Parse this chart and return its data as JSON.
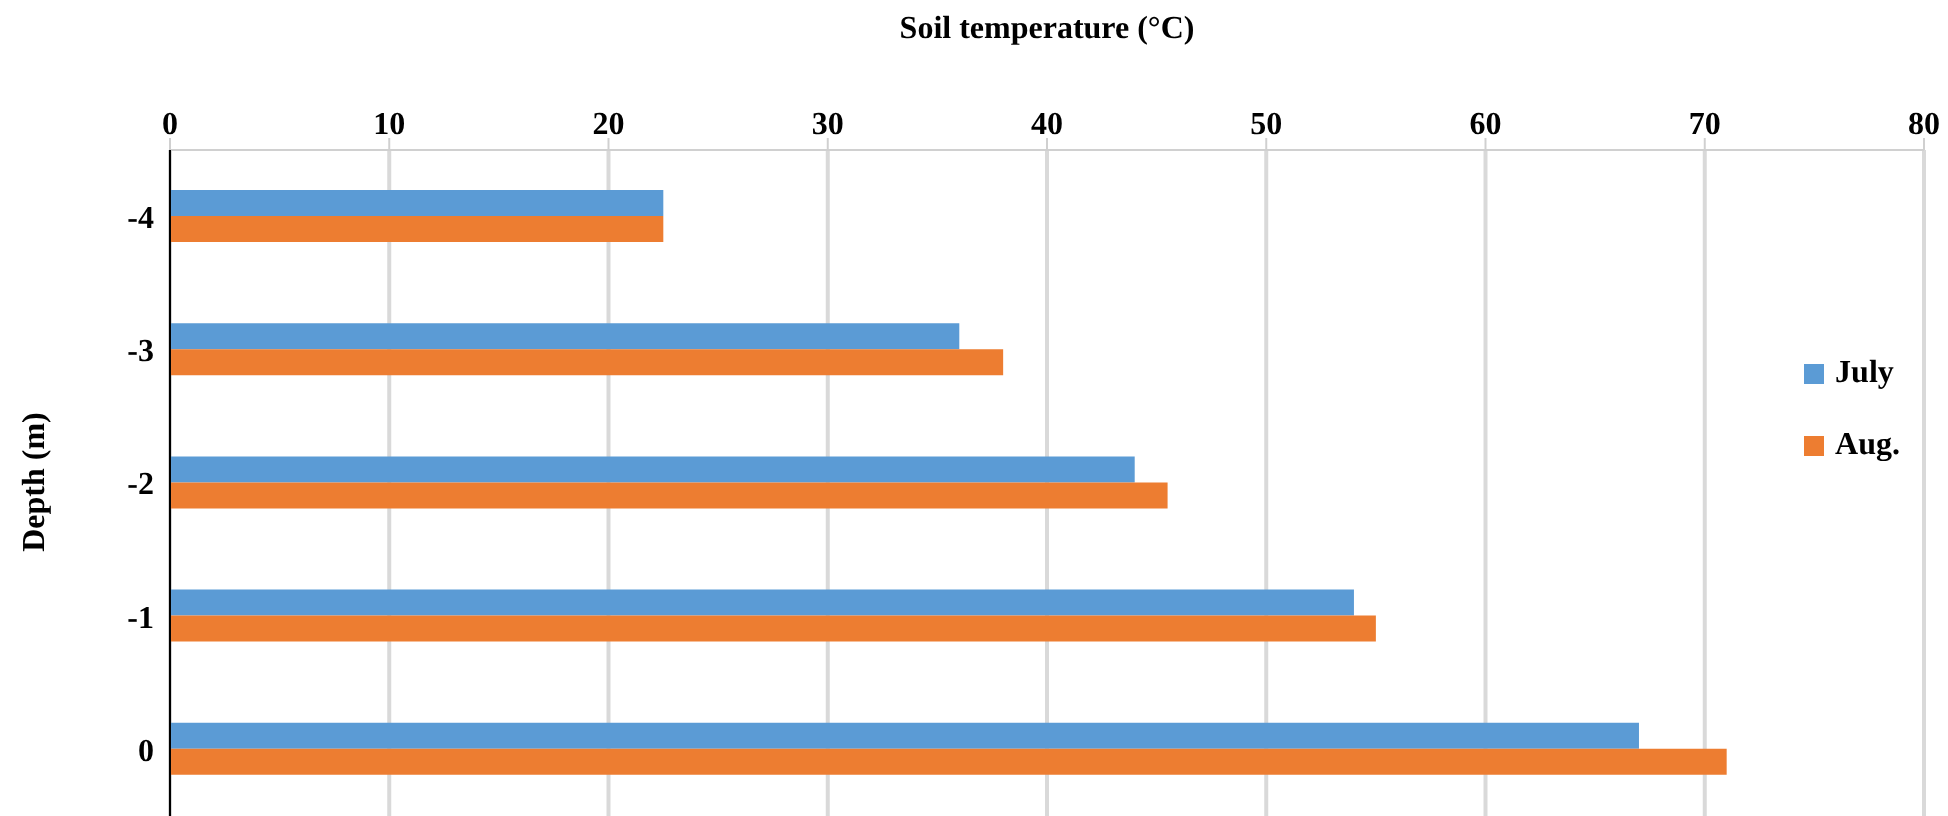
{
  "chart_data": {
    "type": "bar",
    "orientation": "horizontal",
    "xlabel": "Soil temperature (°C)",
    "ylabel": "Depth (m)",
    "categories": [
      "-4",
      "-3",
      "-2",
      "-1",
      "0"
    ],
    "series": [
      {
        "name": "July",
        "color": "#5b9bd5",
        "values": [
          22.5,
          36,
          44,
          54,
          67
        ]
      },
      {
        "name": "Aug.",
        "color": "#ed7d31",
        "values": [
          22.5,
          38,
          45.5,
          55,
          71
        ]
      }
    ],
    "xlim": [
      0,
      80
    ],
    "xticks": [
      0,
      10,
      20,
      30,
      40,
      50,
      60,
      70,
      80
    ],
    "grid": "x",
    "legend": "right"
  }
}
